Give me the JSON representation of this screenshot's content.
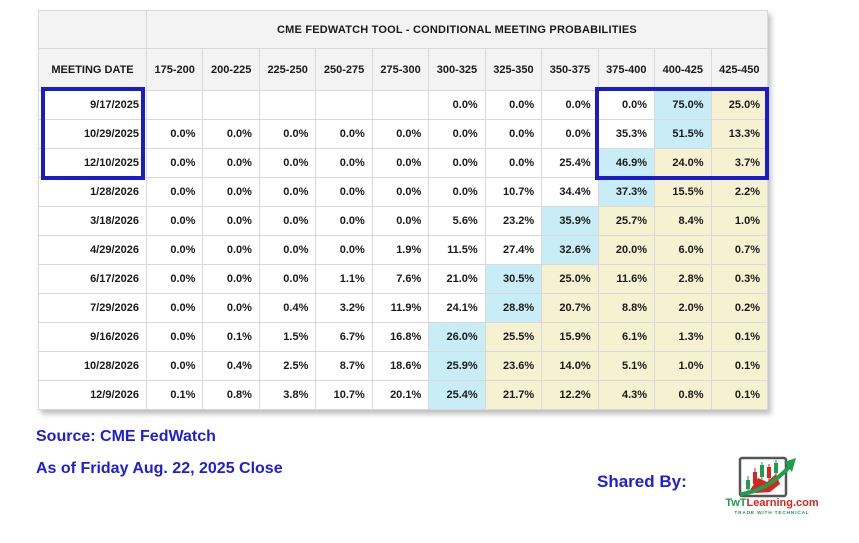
{
  "chart_data": {
    "type": "table",
    "title": "CME FEDWATCH TOOL - CONDITIONAL MEETING PROBABILITIES",
    "row_header_label": "MEETING DATE",
    "columns": [
      "175-200",
      "200-225",
      "225-250",
      "250-275",
      "275-300",
      "300-325",
      "325-350",
      "350-375",
      "375-400",
      "400-425",
      "425-450"
    ],
    "rows": [
      {
        "date": "9/17/2025",
        "cells": [
          "",
          "",
          "",
          "",
          "",
          "0.0%",
          "0.0%",
          "0.0%",
          "0.0%",
          "75.0%",
          "25.0%"
        ],
        "highlights": [
          "",
          "",
          "",
          "",
          "",
          "",
          "",
          "",
          "",
          "blue",
          "yellow"
        ]
      },
      {
        "date": "10/29/2025",
        "cells": [
          "0.0%",
          "0.0%",
          "0.0%",
          "0.0%",
          "0.0%",
          "0.0%",
          "0.0%",
          "0.0%",
          "35.3%",
          "51.5%",
          "13.3%"
        ],
        "highlights": [
          "",
          "",
          "",
          "",
          "",
          "",
          "",
          "",
          "",
          "blue",
          "yellow"
        ]
      },
      {
        "date": "12/10/2025",
        "cells": [
          "0.0%",
          "0.0%",
          "0.0%",
          "0.0%",
          "0.0%",
          "0.0%",
          "0.0%",
          "25.4%",
          "46.9%",
          "24.0%",
          "3.7%"
        ],
        "highlights": [
          "",
          "",
          "",
          "",
          "",
          "",
          "",
          "",
          "blue",
          "yellow",
          "yellow"
        ]
      },
      {
        "date": "1/28/2026",
        "cells": [
          "0.0%",
          "0.0%",
          "0.0%",
          "0.0%",
          "0.0%",
          "0.0%",
          "10.7%",
          "34.4%",
          "37.3%",
          "15.5%",
          "2.2%"
        ],
        "highlights": [
          "",
          "",
          "",
          "",
          "",
          "",
          "",
          "",
          "blue",
          "yellow",
          "yellow"
        ]
      },
      {
        "date": "3/18/2026",
        "cells": [
          "0.0%",
          "0.0%",
          "0.0%",
          "0.0%",
          "0.0%",
          "5.6%",
          "23.2%",
          "35.9%",
          "25.7%",
          "8.4%",
          "1.0%"
        ],
        "highlights": [
          "",
          "",
          "",
          "",
          "",
          "",
          "",
          "blue",
          "yellow",
          "yellow",
          "yellow"
        ]
      },
      {
        "date": "4/29/2026",
        "cells": [
          "0.0%",
          "0.0%",
          "0.0%",
          "0.0%",
          "1.9%",
          "11.5%",
          "27.4%",
          "32.6%",
          "20.0%",
          "6.0%",
          "0.7%"
        ],
        "highlights": [
          "",
          "",
          "",
          "",
          "",
          "",
          "",
          "blue",
          "yellow",
          "yellow",
          "yellow"
        ]
      },
      {
        "date": "6/17/2026",
        "cells": [
          "0.0%",
          "0.0%",
          "0.0%",
          "1.1%",
          "7.6%",
          "21.0%",
          "30.5%",
          "25.0%",
          "11.6%",
          "2.8%",
          "0.3%"
        ],
        "highlights": [
          "",
          "",
          "",
          "",
          "",
          "",
          "blue",
          "yellow",
          "yellow",
          "yellow",
          "yellow"
        ]
      },
      {
        "date": "7/29/2026",
        "cells": [
          "0.0%",
          "0.0%",
          "0.4%",
          "3.2%",
          "11.9%",
          "24.1%",
          "28.8%",
          "20.7%",
          "8.8%",
          "2.0%",
          "0.2%"
        ],
        "highlights": [
          "",
          "",
          "",
          "",
          "",
          "",
          "blue",
          "yellow",
          "yellow",
          "yellow",
          "yellow"
        ]
      },
      {
        "date": "9/16/2026",
        "cells": [
          "0.0%",
          "0.1%",
          "1.5%",
          "6.7%",
          "16.8%",
          "26.0%",
          "25.5%",
          "15.9%",
          "6.1%",
          "1.3%",
          "0.1%"
        ],
        "highlights": [
          "",
          "",
          "",
          "",
          "",
          "blue",
          "yellow",
          "yellow",
          "yellow",
          "yellow",
          "yellow"
        ]
      },
      {
        "date": "10/28/2026",
        "cells": [
          "0.0%",
          "0.4%",
          "2.5%",
          "8.7%",
          "18.6%",
          "25.9%",
          "23.6%",
          "14.0%",
          "5.1%",
          "1.0%",
          "0.1%"
        ],
        "highlights": [
          "",
          "",
          "",
          "",
          "",
          "blue",
          "yellow",
          "yellow",
          "yellow",
          "yellow",
          "yellow"
        ]
      },
      {
        "date": "12/9/2026",
        "cells": [
          "0.1%",
          "0.8%",
          "3.8%",
          "10.7%",
          "20.1%",
          "25.4%",
          "21.7%",
          "12.2%",
          "4.3%",
          "0.8%",
          "0.1%"
        ],
        "highlights": [
          "",
          "",
          "",
          "",
          "",
          "blue",
          "yellow",
          "yellow",
          "yellow",
          "yellow",
          "yellow"
        ]
      }
    ],
    "annotations": {
      "blue_outlined_dates": [
        "9/17/2025",
        "10/29/2025",
        "12/10/2025"
      ],
      "blue_outlined_columns": [
        "375-400",
        "400-425",
        "425-450"
      ]
    }
  },
  "footer": {
    "source_line": "Source: CME FedWatch",
    "asof_line": "As of Friday Aug. 22, 2025 Close",
    "shared_by_label": "Shared By:",
    "logo_text_prefix": "TwT",
    "logo_text_suffix": "Learning.com",
    "logo_tagline": "TRADE WITH TECHNICAL"
  },
  "colors": {
    "highlight_blue": "#c9edf7",
    "highlight_yellow": "#f5f1d1",
    "outline_blue": "#1b1bc8",
    "footer_text_blue": "#1d1de0",
    "logo_green": "#1f9e4b",
    "logo_red": "#d9251d"
  }
}
